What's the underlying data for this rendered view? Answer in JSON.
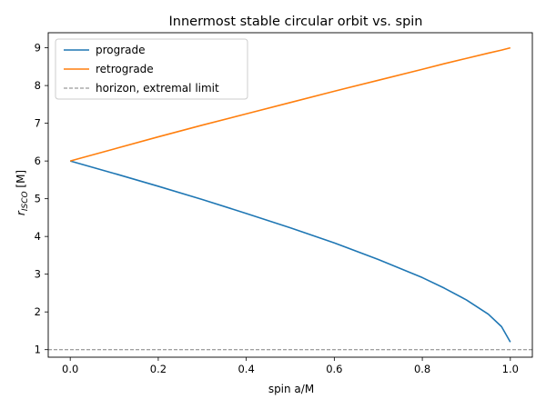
{
  "chart_data": {
    "type": "line",
    "title": "Innermost stable circular orbit vs. spin",
    "xlabel": "spin a/M",
    "ylabel_main": "r",
    "ylabel_sub": "ISCO",
    "ylabel_unit": " [M]",
    "xlim": [
      -0.05,
      1.05
    ],
    "ylim": [
      0.8,
      9.4
    ],
    "grid": false,
    "legend_position": "top-left",
    "x": [
      0.0,
      0.1,
      0.2,
      0.3,
      0.4,
      0.5,
      0.6,
      0.7,
      0.8,
      0.85,
      0.9,
      0.95,
      0.98,
      1.0
    ],
    "xticks": [
      "0.0",
      "0.2",
      "0.4",
      "0.6",
      "0.8",
      "1.0"
    ],
    "yticks": [
      "1",
      "2",
      "3",
      "4",
      "5",
      "6",
      "7",
      "8",
      "9"
    ],
    "series": [
      {
        "name": "prograde",
        "color": "#1f77b4",
        "style": "solid",
        "values": [
          6.0,
          5.67,
          5.33,
          4.98,
          4.61,
          4.23,
          3.83,
          3.39,
          2.91,
          2.63,
          2.32,
          1.94,
          1.61,
          1.2
        ]
      },
      {
        "name": "retrograde",
        "color": "#ff7f0e",
        "style": "solid",
        "values": [
          6.0,
          6.32,
          6.64,
          6.95,
          7.25,
          7.55,
          7.85,
          8.14,
          8.43,
          8.58,
          8.72,
          8.86,
          8.94,
          9.0
        ]
      },
      {
        "name": "horizon, extremal limit",
        "color": "#808080",
        "style": "dashed",
        "hline": 1.0
      }
    ]
  }
}
